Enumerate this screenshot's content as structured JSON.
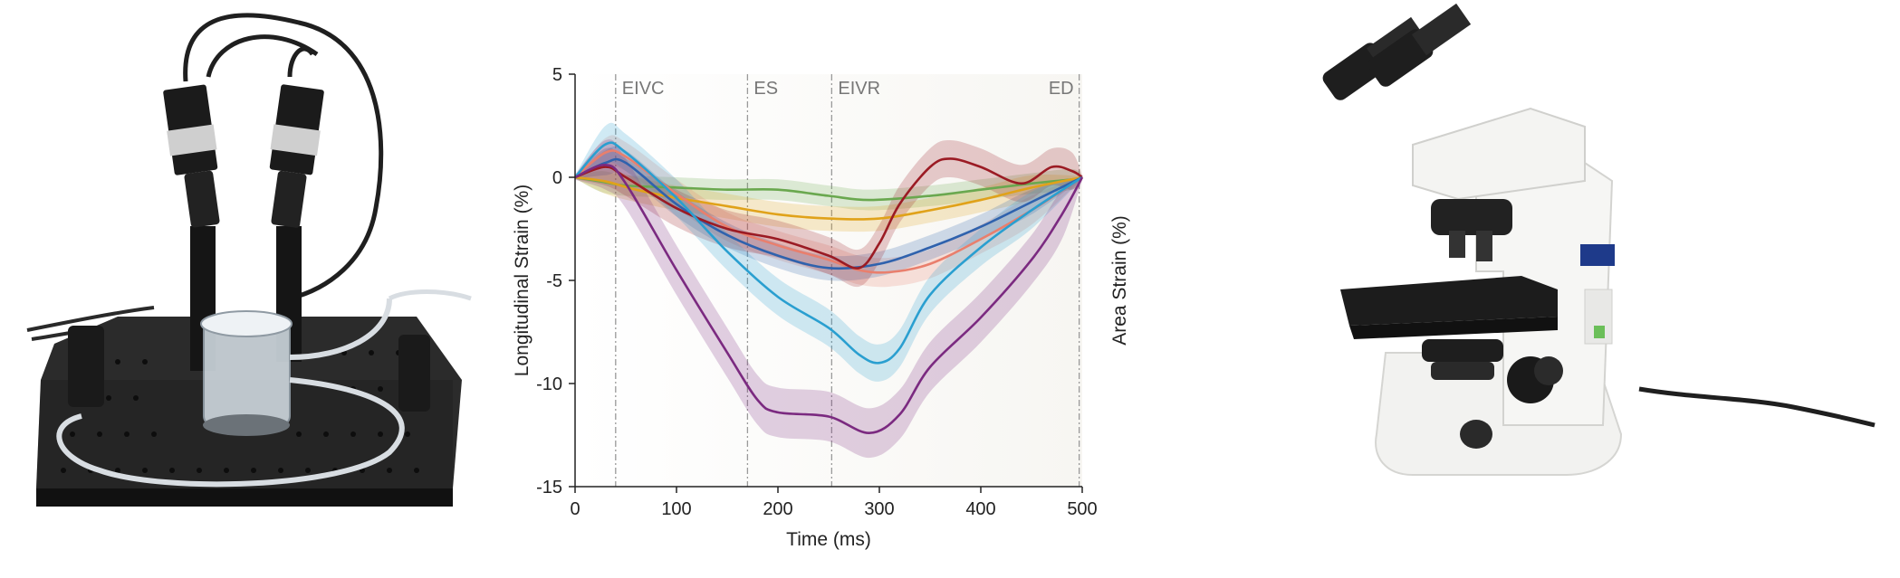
{
  "panels": {
    "left": {
      "image_name": "stereo camera rig with perfusion chamber on optical breadboard"
    },
    "right": {
      "image_name": "upright light microscope"
    }
  },
  "chart_data": {
    "type": "line",
    "title": "",
    "xlabel": "Time (ms)",
    "ylabel": "Longitudinal Strain (%)",
    "ylabel_right": "Area Strain (%)",
    "xlim": [
      0,
      500
    ],
    "ylim": [
      -15,
      5
    ],
    "xticks": [
      0,
      100,
      200,
      300,
      400,
      500
    ],
    "yticks": [
      5,
      0,
      -5,
      -10,
      -15
    ],
    "grid": false,
    "legend": "none",
    "events": [
      {
        "label": "EIVC",
        "x": 40
      },
      {
        "label": "ES",
        "x": 170
      },
      {
        "label": "EIVR",
        "x": 253
      },
      {
        "label": "ED",
        "x": 497
      }
    ],
    "series": [
      {
        "name": "green",
        "color": "#6aa84f",
        "band": 0.5,
        "points": [
          [
            0,
            0
          ],
          [
            25,
            -0.2
          ],
          [
            50,
            -0.4
          ],
          [
            100,
            -0.5
          ],
          [
            150,
            -0.6
          ],
          [
            200,
            -0.6
          ],
          [
            250,
            -0.9
          ],
          [
            290,
            -1.1
          ],
          [
            350,
            -0.9
          ],
          [
            400,
            -0.6
          ],
          [
            450,
            -0.3
          ],
          [
            490,
            -0.1
          ],
          [
            500,
            0
          ]
        ]
      },
      {
        "name": "orange",
        "color": "#e0a21a",
        "band": 0.6,
        "points": [
          [
            0,
            0
          ],
          [
            30,
            -0.2
          ],
          [
            60,
            -0.6
          ],
          [
            100,
            -1.0
          ],
          [
            150,
            -1.4
          ],
          [
            200,
            -1.8
          ],
          [
            250,
            -2.0
          ],
          [
            300,
            -2.0
          ],
          [
            350,
            -1.6
          ],
          [
            400,
            -1.1
          ],
          [
            450,
            -0.5
          ],
          [
            500,
            0
          ]
        ]
      },
      {
        "name": "pink",
        "color": "#e97f6d",
        "band": 0.7,
        "points": [
          [
            0,
            0
          ],
          [
            30,
            1.2
          ],
          [
            50,
            1.0
          ],
          [
            100,
            -0.8
          ],
          [
            150,
            -2.4
          ],
          [
            200,
            -3.3
          ],
          [
            250,
            -4.0
          ],
          [
            280,
            -4.5
          ],
          [
            310,
            -4.6
          ],
          [
            350,
            -4.2
          ],
          [
            400,
            -3.0
          ],
          [
            450,
            -1.6
          ],
          [
            500,
            0
          ]
        ]
      },
      {
        "name": "blue",
        "color": "#2f62ad",
        "band": 0.6,
        "points": [
          [
            0,
            0
          ],
          [
            30,
            0.7
          ],
          [
            50,
            0.7
          ],
          [
            100,
            -1.3
          ],
          [
            150,
            -2.8
          ],
          [
            200,
            -3.8
          ],
          [
            250,
            -4.4
          ],
          [
            300,
            -4.2
          ],
          [
            350,
            -3.4
          ],
          [
            400,
            -2.4
          ],
          [
            450,
            -1.2
          ],
          [
            500,
            0
          ]
        ]
      },
      {
        "name": "dark-red",
        "color": "#9b1b24",
        "band": 0.9,
        "points": [
          [
            0,
            0
          ],
          [
            30,
            0.5
          ],
          [
            50,
            0.0
          ],
          [
            100,
            -1.5
          ],
          [
            150,
            -2.5
          ],
          [
            200,
            -3.0
          ],
          [
            250,
            -3.8
          ],
          [
            280,
            -4.4
          ],
          [
            300,
            -3.2
          ],
          [
            320,
            -1.3
          ],
          [
            350,
            0.5
          ],
          [
            370,
            0.9
          ],
          [
            400,
            0.5
          ],
          [
            440,
            -0.3
          ],
          [
            470,
            0.5
          ],
          [
            490,
            0.3
          ],
          [
            500,
            0
          ]
        ]
      },
      {
        "name": "light-blue",
        "color": "#2a9fd0",
        "band": 0.9,
        "points": [
          [
            0,
            0
          ],
          [
            30,
            1.6
          ],
          [
            50,
            1.2
          ],
          [
            100,
            -1.0
          ],
          [
            150,
            -3.6
          ],
          [
            200,
            -5.8
          ],
          [
            250,
            -7.3
          ],
          [
            280,
            -8.6
          ],
          [
            300,
            -9.0
          ],
          [
            320,
            -8.3
          ],
          [
            350,
            -5.7
          ],
          [
            400,
            -3.4
          ],
          [
            450,
            -1.6
          ],
          [
            500,
            0
          ]
        ]
      },
      {
        "name": "purple",
        "color": "#7b2a80",
        "band": 1.2,
        "points": [
          [
            0,
            0
          ],
          [
            30,
            0.6
          ],
          [
            50,
            -0.3
          ],
          [
            100,
            -4.5
          ],
          [
            150,
            -8.5
          ],
          [
            180,
            -10.8
          ],
          [
            200,
            -11.4
          ],
          [
            250,
            -11.6
          ],
          [
            290,
            -12.4
          ],
          [
            320,
            -11.5
          ],
          [
            350,
            -9.2
          ],
          [
            400,
            -6.8
          ],
          [
            450,
            -4.0
          ],
          [
            480,
            -1.8
          ],
          [
            500,
            0
          ]
        ]
      }
    ]
  }
}
